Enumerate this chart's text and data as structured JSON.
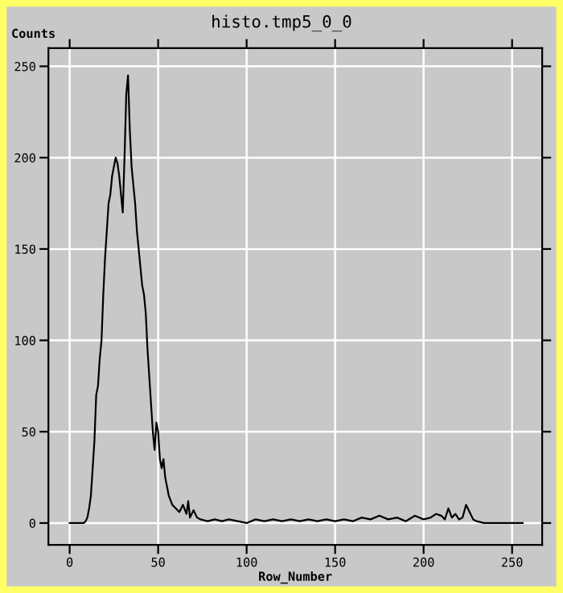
{
  "chart_data": {
    "type": "line",
    "title": "histo.tmp5_0_0",
    "ylabel": "Counts",
    "xlabel": "Row_Number",
    "x": [
      0,
      8,
      9,
      10,
      11,
      12,
      13,
      14,
      15,
      16,
      17,
      18,
      19,
      20,
      21,
      22,
      23,
      24,
      25,
      26,
      27,
      28,
      29,
      30,
      31,
      32,
      33,
      34,
      35,
      36,
      37,
      38,
      39,
      40,
      41,
      42,
      43,
      44,
      45,
      46,
      47,
      48,
      49,
      50,
      51,
      52,
      53,
      54,
      55,
      56,
      58,
      60,
      62,
      64,
      66,
      67,
      68,
      70,
      72,
      74,
      78,
      82,
      86,
      90,
      95,
      100,
      105,
      110,
      115,
      120,
      125,
      130,
      135,
      140,
      145,
      150,
      155,
      160,
      165,
      170,
      175,
      180,
      185,
      190,
      195,
      200,
      204,
      207,
      210,
      212,
      214,
      216,
      218,
      220,
      222,
      224,
      226,
      228,
      230,
      234,
      256
    ],
    "series": [
      {
        "color": "#000000",
        "values": [
          0,
          0,
          1,
          3,
          8,
          15,
          30,
          45,
          70,
          75,
          90,
          100,
          125,
          145,
          160,
          175,
          180,
          190,
          195,
          200,
          197,
          190,
          180,
          170,
          200,
          235,
          245,
          215,
          195,
          185,
          175,
          160,
          150,
          140,
          130,
          125,
          115,
          95,
          80,
          65,
          50,
          40,
          55,
          50,
          35,
          30,
          35,
          25,
          20,
          15,
          10,
          8,
          6,
          10,
          5,
          12,
          3,
          7,
          3,
          2,
          1,
          2,
          1,
          2,
          1,
          0,
          2,
          1,
          2,
          1,
          2,
          1,
          2,
          1,
          2,
          1,
          2,
          1,
          3,
          2,
          4,
          2,
          3,
          1,
          4,
          2,
          3,
          5,
          4,
          2,
          8,
          3,
          5,
          2,
          3,
          10,
          6,
          2,
          1,
          0,
          0
        ]
      }
    ],
    "xlim": [
      -12,
      267
    ],
    "ylim": [
      -12,
      260
    ],
    "xticks": [
      0,
      50,
      100,
      150,
      200,
      250
    ],
    "yticks": [
      0,
      50,
      100,
      150,
      200,
      250
    ],
    "grid": true,
    "line_style": "solid",
    "marker": "none",
    "legend": false
  }
}
